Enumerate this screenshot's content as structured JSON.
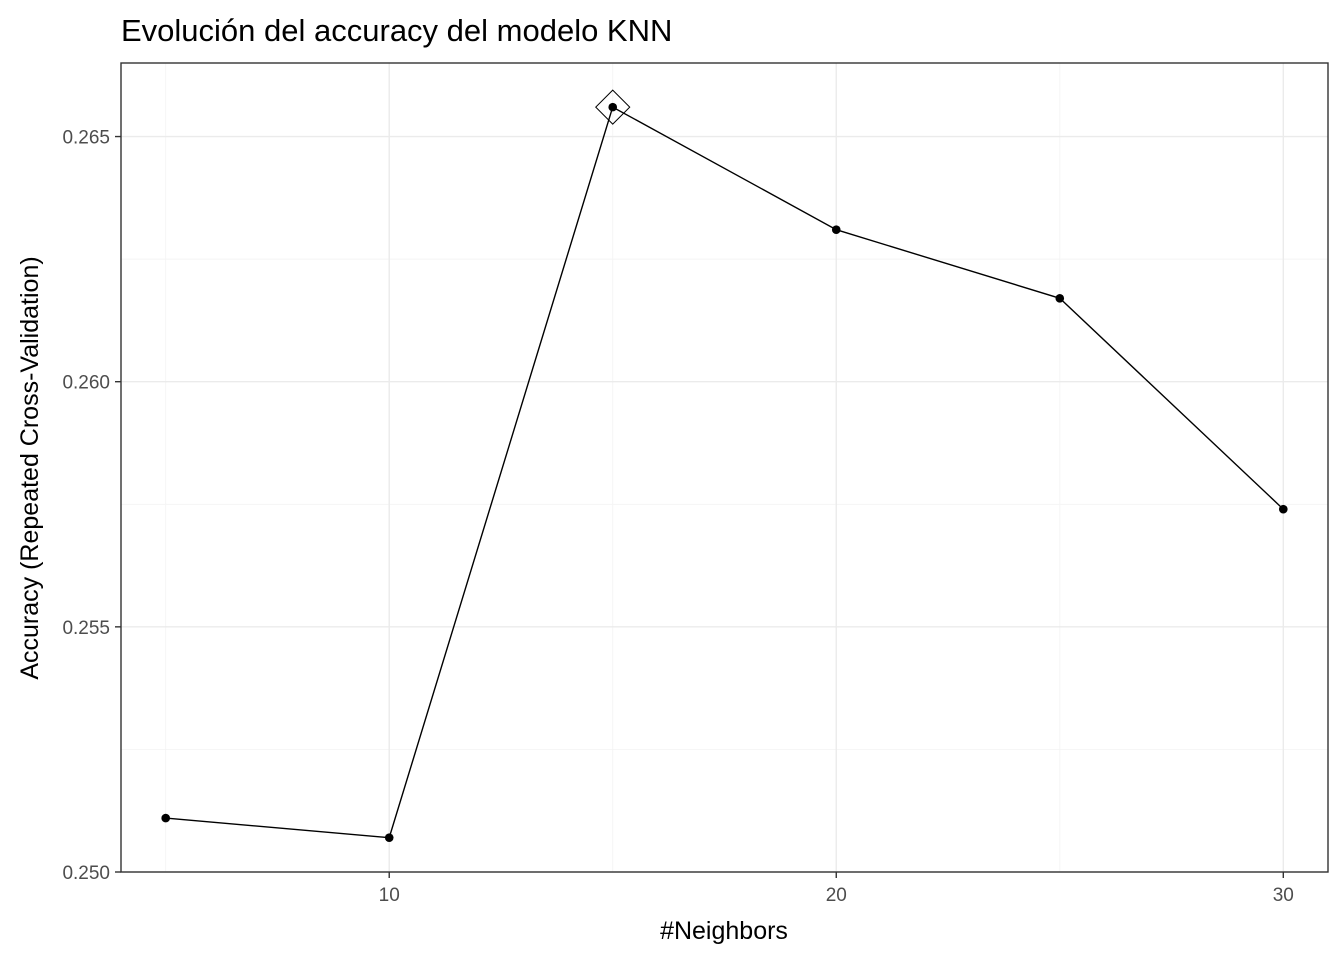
{
  "chart_data": {
    "type": "line",
    "title": "Evolución del accuracy del modelo KNN",
    "xlabel": "#Neighbors",
    "ylabel": "Accuracy (Repeated Cross-Validation)",
    "x": [
      5,
      10,
      15,
      20,
      25,
      30
    ],
    "series": [
      {
        "values": [
          0.2511,
          0.2507,
          0.2656,
          0.2631,
          0.2617,
          0.2574
        ]
      }
    ],
    "best": {
      "x": 15,
      "y": 0.2656,
      "marker": "diamond"
    },
    "xlim": [
      4,
      31
    ],
    "ylim": [
      0.25,
      0.2665
    ],
    "xticks": [
      10,
      20,
      30
    ],
    "xtick_labels": [
      "10",
      "20",
      "30"
    ],
    "yticks": [
      0.25,
      0.255,
      0.26,
      0.265
    ],
    "ytick_labels": [
      "0.250",
      "0.255",
      "0.260",
      "0.265"
    ],
    "grid": true,
    "legend": "none",
    "colors": {
      "line": "#000000",
      "grid": "#ebebeb",
      "border": "#333333",
      "tick_text": "#4d4d4d"
    }
  }
}
